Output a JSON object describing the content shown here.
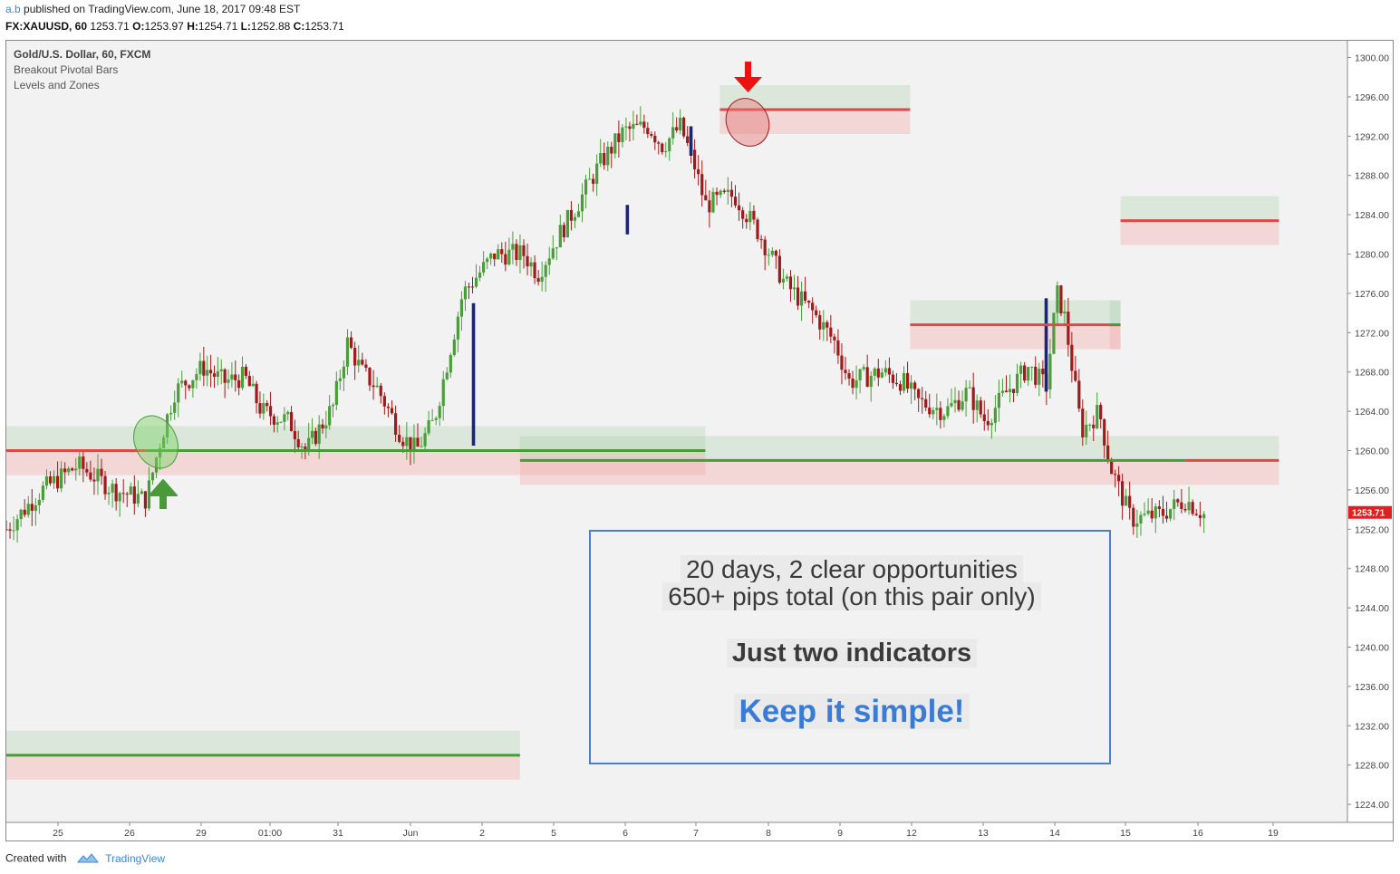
{
  "header": {
    "user": "a.b",
    "published": "published on TradingView.com, June 18, 2017 09:48 EST",
    "symbol": "FX:XAUUSD, 60",
    "last": "1253.71",
    "o_label": "O:",
    "o_value": "1253.97",
    "h_label": "H:",
    "h_value": "1254.71",
    "l_label": "L:",
    "l_value": "1252.88",
    "c_label": "C:",
    "c_value": "1253.71"
  },
  "legend": {
    "title": "Gold/U.S. Dollar, 60, FXCM",
    "indicator1": "Breakout Pivotal Bars",
    "indicator2": "Levels and Zones"
  },
  "price_label": "1253.71",
  "annotation": {
    "line1": "20 days, 2 clear opportunities",
    "line2": "650+ pips total (on this pair only)",
    "line3": "Just two indicators",
    "line4": "Keep it simple!"
  },
  "footer": {
    "created_with": "Created with",
    "brand": "TradingView"
  },
  "colors": {
    "up": "#4a9e3a",
    "down": "#a31818",
    "breakout": "#1a237e",
    "resistance_line": "#e04848",
    "support_line": "#4a9a3a",
    "price_label_bg": "#e02020",
    "annotation_border": "#4a7fcf",
    "emphasis_text": "#3a7bd5"
  },
  "chart_data": {
    "type": "candlestick",
    "symbol": "XAUUSD",
    "timeframe": "60",
    "ylim": [
      1222,
      1302
    ],
    "y_ticks": [
      "1300.00",
      "1296.00",
      "1292.00",
      "1288.00",
      "1284.00",
      "1280.00",
      "1276.00",
      "1272.00",
      "1268.00",
      "1264.00",
      "1260.00",
      "1256.00",
      "1252.00",
      "1248.00",
      "1244.00",
      "1240.00",
      "1236.00",
      "1232.00",
      "1228.00",
      "1224.00"
    ],
    "x_ticks": [
      "25",
      "26",
      "29",
      "01:00",
      "31",
      "Jun",
      "2",
      "5",
      "6",
      "7",
      "8",
      "9",
      "12",
      "13",
      "14",
      "15",
      "16",
      "19"
    ],
    "price_path": [
      [
        0,
        1252
      ],
      [
        0.5,
        1256
      ],
      [
        1,
        1258.5
      ],
      [
        1.5,
        1256
      ],
      [
        1.95,
        1255
      ],
      [
        2.15,
        1261
      ],
      [
        2.35,
        1266
      ],
      [
        2.75,
        1268.5
      ],
      [
        3.05,
        1267
      ],
      [
        3.35,
        1267.5
      ],
      [
        3.6,
        1264
      ],
      [
        4,
        1263
      ],
      [
        4.25,
        1260
      ],
      [
        4.65,
        1264.5
      ],
      [
        4.85,
        1271
      ],
      [
        5.05,
        1268
      ],
      [
        5.25,
        1266.5
      ],
      [
        5.6,
        1261.5
      ],
      [
        5.8,
        1260
      ],
      [
        6.05,
        1263
      ],
      [
        6.45,
        1276
      ],
      [
        6.9,
        1280
      ],
      [
        7.3,
        1280
      ],
      [
        7.5,
        1278
      ],
      [
        7.8,
        1282
      ],
      [
        8.05,
        1285
      ],
      [
        8.35,
        1289
      ],
      [
        8.7,
        1292.5
      ],
      [
        9.05,
        1293
      ],
      [
        9.25,
        1291
      ],
      [
        9.5,
        1293
      ],
      [
        9.7,
        1289
      ],
      [
        9.85,
        1285
      ],
      [
        10.25,
        1286
      ],
      [
        10.6,
        1282
      ],
      [
        10.95,
        1277
      ],
      [
        11.35,
        1274
      ],
      [
        11.65,
        1271
      ],
      [
        11.85,
        1267
      ],
      [
        12.3,
        1268
      ],
      [
        12.6,
        1267
      ],
      [
        12.8,
        1265
      ],
      [
        13.2,
        1264
      ],
      [
        13.5,
        1266
      ],
      [
        13.75,
        1263
      ],
      [
        14.05,
        1266
      ],
      [
        14.35,
        1268.5
      ],
      [
        14.6,
        1266.5
      ],
      [
        14.75,
        1276
      ],
      [
        14.85,
        1274
      ],
      [
        15.1,
        1262
      ],
      [
        15.35,
        1264
      ],
      [
        15.5,
        1258.5
      ],
      [
        15.8,
        1253
      ],
      [
        16.2,
        1253.5
      ],
      [
        16.55,
        1255
      ],
      [
        16.8,
        1253.5
      ]
    ],
    "breakout_bars": [
      [
        6.6,
        1260.5,
        1275
      ],
      [
        8.75,
        1282,
        1285
      ],
      [
        9.65,
        1290,
        1293
      ],
      [
        14.6,
        1266,
        1275.5
      ]
    ],
    "levels": [
      {
        "kind": "resistance",
        "x_from": 0,
        "x_to": 1.95,
        "price": 1260
      },
      {
        "kind": "support",
        "x_from": 1.95,
        "x_to": 9.85,
        "price": 1260
      },
      {
        "kind": "support",
        "x_from": 0,
        "x_to": 7.25,
        "price": 1229
      },
      {
        "kind": "support",
        "x_from": 7.25,
        "x_to": 16.55,
        "price": 1259
      },
      {
        "kind": "resistance",
        "x_from": 16.55,
        "x_to": 17.8,
        "price": 1259
      },
      {
        "kind": "resistance",
        "x_from": 10.05,
        "x_to": 12.7,
        "price": 1294.7
      },
      {
        "kind": "resistance",
        "x_from": 12.7,
        "x_to": 15.65,
        "price": 1272.8
      },
      {
        "kind": "support",
        "x_from": 15.5,
        "x_to": 15.65,
        "price": 1272.8
      },
      {
        "kind": "resistance",
        "x_from": 15.65,
        "x_to": 17.8,
        "price": 1283.4
      }
    ],
    "last_price": 1253.71,
    "open": 1253.97,
    "high": 1254.71,
    "low": 1252.88,
    "close": 1253.71
  }
}
